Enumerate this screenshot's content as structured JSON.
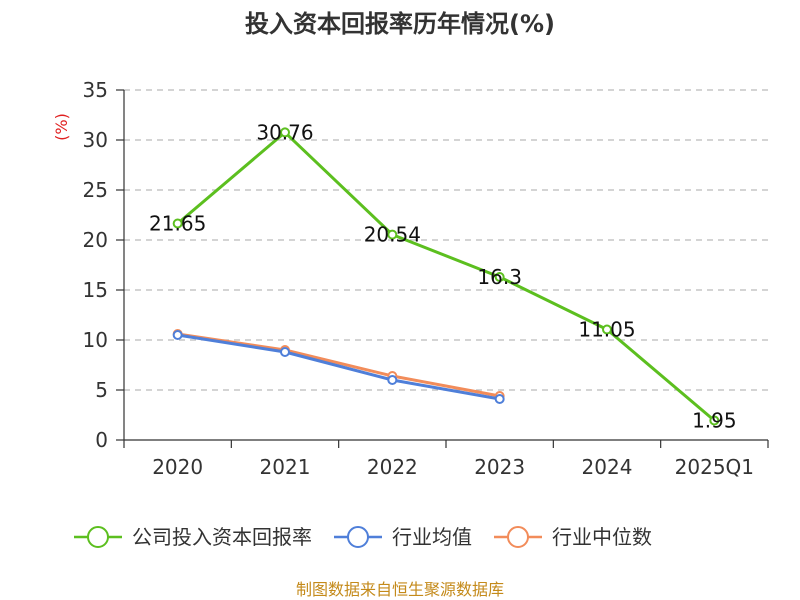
{
  "chart_data": {
    "type": "line",
    "title": "投入资本回报率历年情况(%)",
    "ylabel": "(%)",
    "xlabel": "",
    "categories": [
      "2020",
      "2021",
      "2022",
      "2023",
      "2024",
      "2025Q1"
    ],
    "ylim": [
      0,
      35
    ],
    "yticks": [
      0,
      5,
      10,
      15,
      20,
      25,
      30,
      35
    ],
    "grid": true,
    "legend_position": "bottom",
    "series": [
      {
        "name": "公司投入资本回报率",
        "color": "#5cbf1f",
        "values": [
          21.65,
          30.76,
          20.54,
          16.3,
          11.05,
          1.95
        ],
        "labels": [
          "21.65",
          "30.76",
          "20.54",
          "16.3",
          "11.05",
          "1.95"
        ],
        "show_labels": true
      },
      {
        "name": "行业均值",
        "color": "#4f7fd9",
        "values": [
          10.5,
          8.8,
          6.0,
          4.1,
          null,
          null
        ],
        "show_labels": false
      },
      {
        "name": "行业中位数",
        "color": "#f28c5a",
        "values": [
          10.6,
          9.0,
          6.4,
          4.4,
          null,
          null
        ],
        "show_labels": false
      }
    ],
    "source": "制图数据来自恒生聚源数据库"
  }
}
